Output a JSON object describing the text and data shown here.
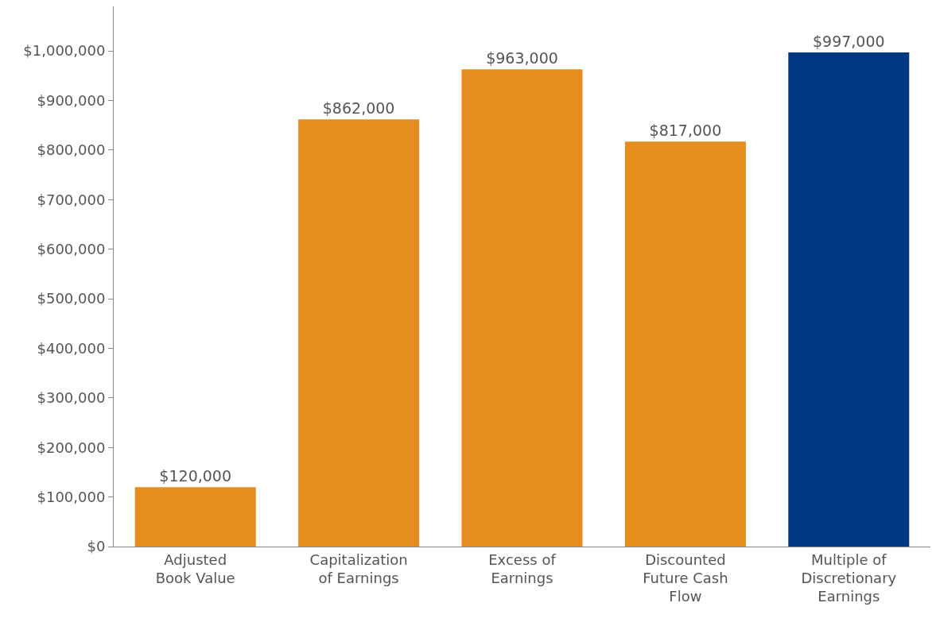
{
  "chart_data": {
    "type": "bar",
    "categories": [
      "Adjusted Book Value",
      "Capitalization of Earnings",
      "Excess of Earnings",
      "Discounted Future Cash Flow",
      "Multiple of Discretionary Earnings"
    ],
    "values": [
      120000,
      862000,
      963000,
      817000,
      997000
    ],
    "colors": [
      "#e58e1f",
      "#e58e1f",
      "#e58e1f",
      "#e58e1f",
      "#003781"
    ],
    "value_labels": [
      "$120,000",
      "$862,000",
      "$963,000",
      "$817,000",
      "$997,000"
    ],
    "ylim": [
      0,
      1090000
    ],
    "yticks": [
      {
        "value": 0,
        "label": "$0"
      },
      {
        "value": 100000,
        "label": "$100,000"
      },
      {
        "value": 200000,
        "label": "$200,000"
      },
      {
        "value": 300000,
        "label": "$300,000"
      },
      {
        "value": 400000,
        "label": "$400,000"
      },
      {
        "value": 500000,
        "label": "$500,000"
      },
      {
        "value": 600000,
        "label": "$600,000"
      },
      {
        "value": 700000,
        "label": "$700,000"
      },
      {
        "value": 800000,
        "label": "$800,000"
      },
      {
        "value": 900000,
        "label": "$900,000"
      },
      {
        "value": 1000000,
        "label": "$1,000,000"
      }
    ],
    "grid": false
  }
}
